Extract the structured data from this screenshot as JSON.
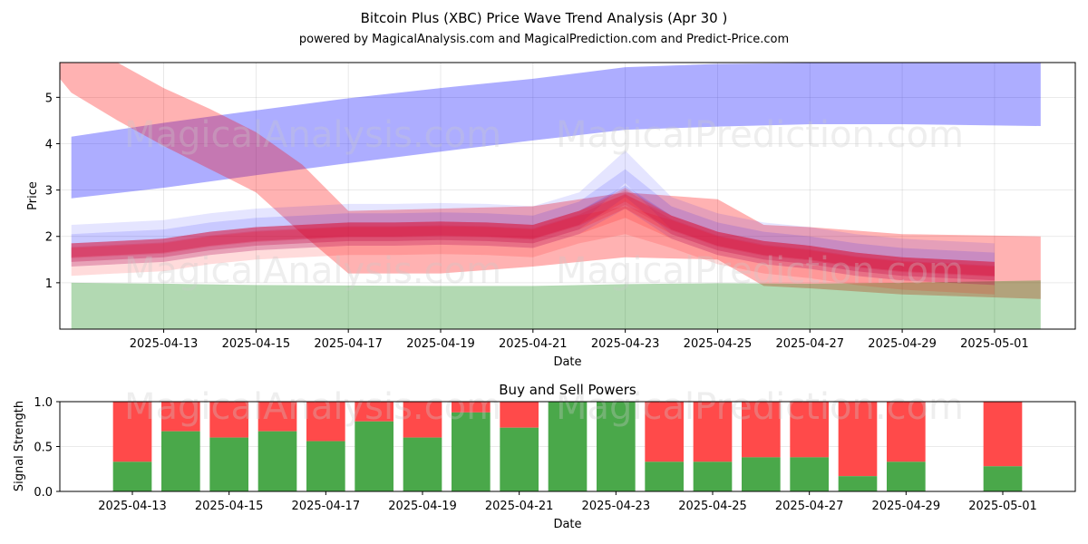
{
  "figure": {
    "title": "Bitcoin Plus (XBC) Price Wave Trend Analysis (Apr 30 )",
    "subtitle": "powered by MagicalAnalysis.com and MagicalPrediction.com and Predict-Price.com",
    "watermarks": [
      "MagicalAnalysis.com",
      "MagicalPrediction.com"
    ]
  },
  "chart_data": [
    {
      "type": "area",
      "xlabel": "Date",
      "ylabel": "Price",
      "x_ticks": [
        "2025-04-13",
        "2025-04-15",
        "2025-04-17",
        "2025-04-19",
        "2025-04-21",
        "2025-04-23",
        "2025-04-25",
        "2025-04-27",
        "2025-04-29",
        "2025-05-01"
      ],
      "y_ticks": [
        1,
        2,
        3,
        4,
        5
      ],
      "xlim": [
        "2025-04-10T18:00",
        "2025-05-02T18:00"
      ],
      "ylim": [
        0,
        5.75
      ],
      "grid": true,
      "bands": [
        {
          "color": "#0000ff",
          "opacity": 0.32,
          "points": [
            {
              "x": "2025-04-11",
              "upper": 4.15,
              "lower": 2.82
            },
            {
              "x": "2025-04-13",
              "upper": 4.45,
              "lower": 3.05
            },
            {
              "x": "2025-04-15",
              "upper": 4.72,
              "lower": 3.32
            },
            {
              "x": "2025-04-17",
              "upper": 4.98,
              "lower": 3.58
            },
            {
              "x": "2025-04-19",
              "upper": 5.2,
              "lower": 3.83
            },
            {
              "x": "2025-04-21",
              "upper": 5.4,
              "lower": 4.07
            },
            {
              "x": "2025-04-23",
              "upper": 5.65,
              "lower": 4.3
            },
            {
              "x": "2025-04-25",
              "upper": 5.72,
              "lower": 4.37
            },
            {
              "x": "2025-04-27",
              "upper": 5.74,
              "lower": 4.42
            },
            {
              "x": "2025-04-29",
              "upper": 5.74,
              "lower": 4.42
            },
            {
              "x": "2025-05-02",
              "upper": 5.74,
              "lower": 4.38
            }
          ]
        },
        {
          "color": "#ff0000",
          "opacity": 0.3,
          "points": [
            {
              "x": "2025-04-10T18:00",
              "upper": 5.75,
              "lower": 5.4
            },
            {
              "x": "2025-04-11",
              "upper": 5.75,
              "lower": 5.1
            },
            {
              "x": "2025-04-12",
              "upper": 5.75,
              "lower": 4.5
            },
            {
              "x": "2025-04-13",
              "upper": 5.2,
              "lower": 3.95
            },
            {
              "x": "2025-04-14",
              "upper": 4.75,
              "lower": 3.45
            },
            {
              "x": "2025-04-15",
              "upper": 4.25,
              "lower": 2.95
            },
            {
              "x": "2025-04-16",
              "upper": 3.55,
              "lower": 2.05
            },
            {
              "x": "2025-04-17",
              "upper": 2.55,
              "lower": 1.2
            },
            {
              "x": "2025-04-19",
              "upper": 2.6,
              "lower": 1.2
            },
            {
              "x": "2025-04-21",
              "upper": 2.65,
              "lower": 1.35
            },
            {
              "x": "2025-04-23",
              "upper": 2.95,
              "lower": 1.55
            },
            {
              "x": "2025-04-25",
              "upper": 2.8,
              "lower": 1.5
            },
            {
              "x": "2025-04-26",
              "upper": 2.25,
              "lower": 0.93
            },
            {
              "x": "2025-04-27",
              "upper": 2.2,
              "lower": 0.88
            },
            {
              "x": "2025-04-29",
              "upper": 2.05,
              "lower": 0.75
            },
            {
              "x": "2025-05-02",
              "upper": 2.0,
              "lower": 0.65
            }
          ]
        },
        {
          "color": "#008000",
          "opacity": 0.3,
          "points": [
            {
              "x": "2025-04-11",
              "upper": 1.0,
              "lower": 0
            },
            {
              "x": "2025-04-13",
              "upper": 0.98,
              "lower": 0
            },
            {
              "x": "2025-04-15",
              "upper": 0.95,
              "lower": 0
            },
            {
              "x": "2025-04-17",
              "upper": 0.94,
              "lower": 0
            },
            {
              "x": "2025-04-19",
              "upper": 0.93,
              "lower": 0
            },
            {
              "x": "2025-04-21",
              "upper": 0.93,
              "lower": 0
            },
            {
              "x": "2025-04-23",
              "upper": 0.97,
              "lower": 0
            },
            {
              "x": "2025-04-25",
              "upper": 0.99,
              "lower": 0
            },
            {
              "x": "2025-04-27",
              "upper": 0.98,
              "lower": 0
            },
            {
              "x": "2025-04-29",
              "upper": 1.0,
              "lower": 0
            },
            {
              "x": "2025-05-02",
              "upper": 1.05,
              "lower": 0
            }
          ]
        }
      ],
      "wave_bands": {
        "dates": [
          "2025-04-11",
          "2025-04-12",
          "2025-04-13",
          "2025-04-14",
          "2025-04-15",
          "2025-04-16",
          "2025-04-17",
          "2025-04-18",
          "2025-04-19",
          "2025-04-20",
          "2025-04-21",
          "2025-04-22",
          "2025-04-23",
          "2025-04-24",
          "2025-04-25",
          "2025-04-26",
          "2025-04-27",
          "2025-04-28",
          "2025-04-29",
          "2025-04-30",
          "2025-05-01"
        ],
        "center": [
          1.65,
          1.7,
          1.75,
          1.9,
          2.0,
          2.05,
          2.1,
          2.1,
          2.12,
          2.1,
          2.05,
          2.35,
          2.8,
          2.25,
          1.9,
          1.7,
          1.6,
          1.45,
          1.35,
          1.3,
          1.25
        ],
        "layers": [
          {
            "color": "#0000ff",
            "opacity": 0.1,
            "offset": 0.25,
            "half_width": 0.35,
            "peak_boost": 0.45
          },
          {
            "color": "#0000ff",
            "opacity": 0.12,
            "offset": 0.1,
            "half_width": 0.3,
            "peak_boost": 0.25
          },
          {
            "color": "#0000ff",
            "opacity": 0.12,
            "offset": -0.05,
            "half_width": 0.25,
            "peak_boost": 0.1
          },
          {
            "color": "#ff0000",
            "opacity": 0.14,
            "offset": -0.2,
            "half_width": 0.3,
            "peak_boost": -0.25
          },
          {
            "color": "#ff0000",
            "opacity": 0.16,
            "offset": -0.05,
            "half_width": 0.25,
            "peak_boost": -0.1
          },
          {
            "color": "#ff0000",
            "opacity": 0.18,
            "offset": 0.0,
            "half_width": 0.2,
            "peak_boost": 0.0
          },
          {
            "color": "#ff0000",
            "opacity": 0.18,
            "offset": 0.05,
            "half_width": 0.15,
            "peak_boost": 0.05
          },
          {
            "color": "#dc143c",
            "opacity": 0.22,
            "offset": 0.0,
            "half_width": 0.12,
            "peak_boost": 0.0
          }
        ]
      }
    },
    {
      "type": "bar",
      "title": "Buy and Sell Powers",
      "xlabel": "Date",
      "ylabel": "Signal Strength",
      "ylim": [
        0,
        1
      ],
      "y_ticks": [
        "0.0",
        "0.5",
        "1.0"
      ],
      "x_ticks": [
        "2025-04-13",
        "2025-04-15",
        "2025-04-17",
        "2025-04-19",
        "2025-04-21",
        "2025-04-23",
        "2025-04-25",
        "2025-04-27",
        "2025-04-29",
        "2025-05-01"
      ],
      "xlim": [
        "2025-04-11T12:00",
        "2025-05-02T12:00"
      ],
      "grid": true,
      "buy_color": "#4aa84a",
      "sell_color": "#ff4a4a",
      "bars": [
        {
          "date": "2025-04-13",
          "buy": 0.33
        },
        {
          "date": "2025-04-14",
          "buy": 0.67
        },
        {
          "date": "2025-04-15",
          "buy": 0.6
        },
        {
          "date": "2025-04-16",
          "buy": 0.67
        },
        {
          "date": "2025-04-17",
          "buy": 0.56
        },
        {
          "date": "2025-04-18",
          "buy": 0.78
        },
        {
          "date": "2025-04-19",
          "buy": 0.6
        },
        {
          "date": "2025-04-20",
          "buy": 0.88
        },
        {
          "date": "2025-04-21",
          "buy": 0.71
        },
        {
          "date": "2025-04-22",
          "buy": 1.0
        },
        {
          "date": "2025-04-23",
          "buy": 1.0
        },
        {
          "date": "2025-04-24",
          "buy": 0.33
        },
        {
          "date": "2025-04-25",
          "buy": 0.33
        },
        {
          "date": "2025-04-26",
          "buy": 0.38
        },
        {
          "date": "2025-04-27",
          "buy": 0.38
        },
        {
          "date": "2025-04-28",
          "buy": 0.17
        },
        {
          "date": "2025-04-29",
          "buy": 0.33
        },
        {
          "date": "2025-05-01",
          "buy": 0.28
        }
      ]
    }
  ]
}
